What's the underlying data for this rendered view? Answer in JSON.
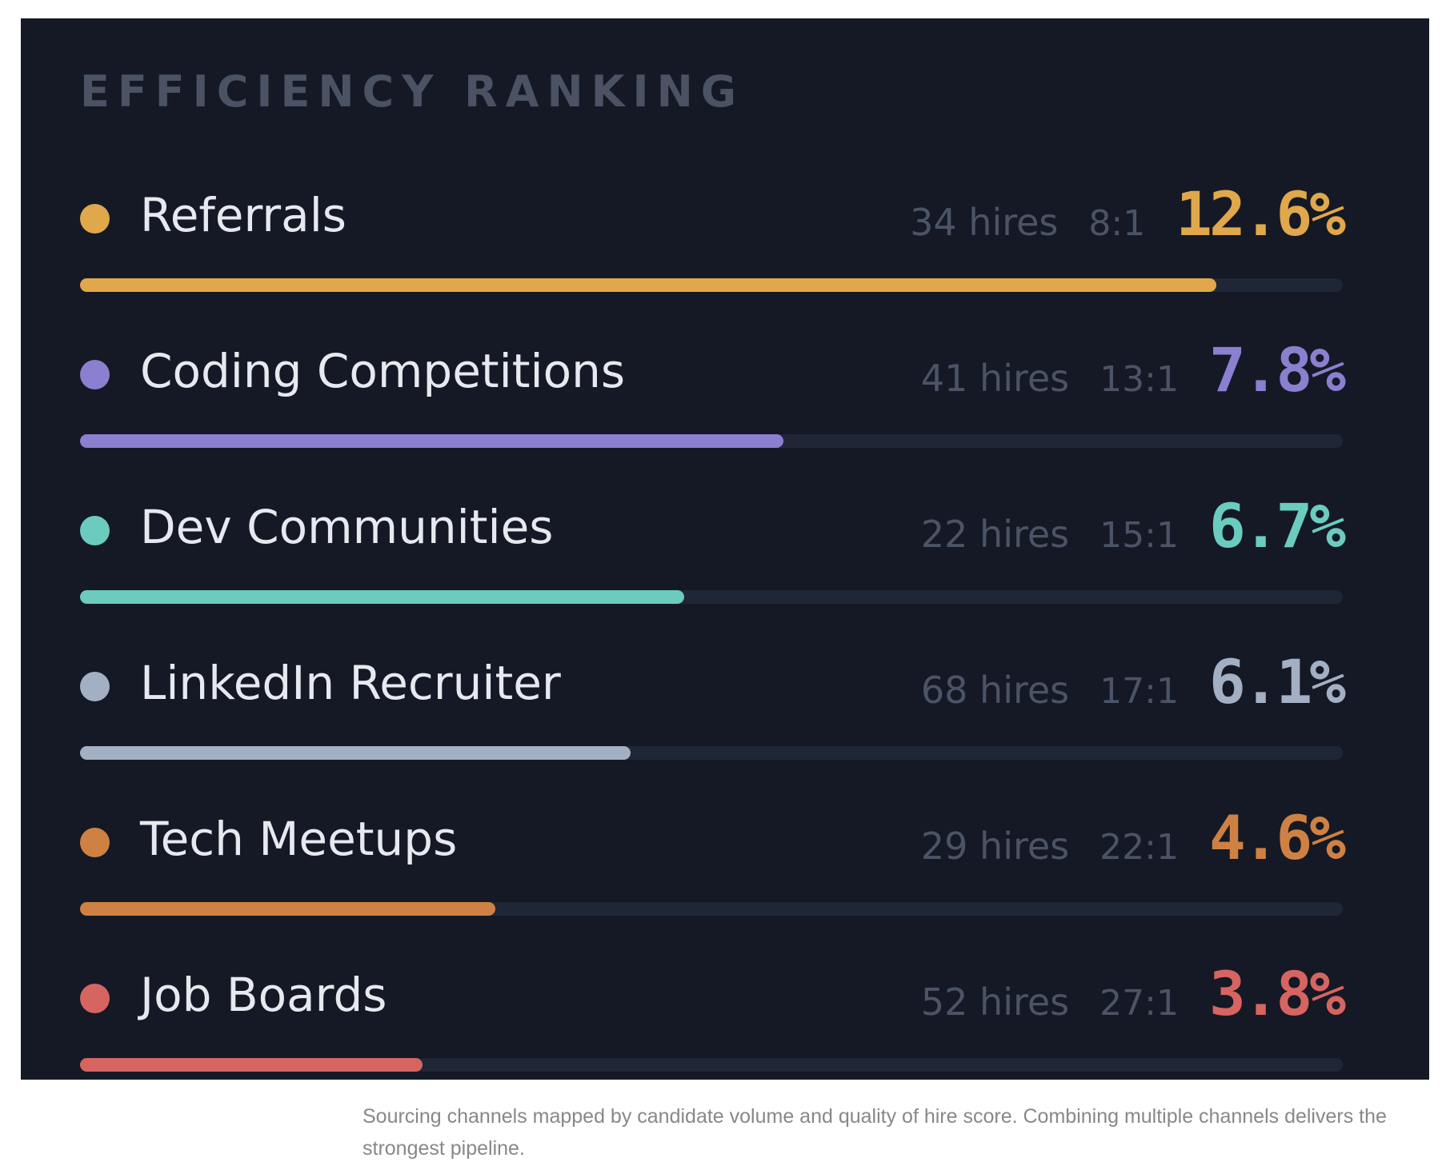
{
  "title": "EFFICIENCY RANKING",
  "caption": "Sourcing channels mapped by candidate volume and quality of hire score. Combining multiple channels delivers the strongest pipeline.",
  "chart_data": {
    "type": "bar",
    "orientation": "horizontal",
    "title": "EFFICIENCY RANKING",
    "categories": [
      "Referrals",
      "Coding Competitions",
      "Dev Communities",
      "LinkedIn Recruiter",
      "Tech Meetups",
      "Job Boards"
    ],
    "values": [
      12.6,
      7.8,
      6.7,
      6.1,
      4.6,
      3.8
    ],
    "xlim": [
      0,
      14
    ],
    "rows": [
      {
        "name": "Referrals",
        "hires": "34 hires",
        "ratio": "8:1",
        "pct": "12.6%",
        "value": 12.6,
        "color": "#e0a84a"
      },
      {
        "name": "Coding Competitions",
        "hires": "41 hires",
        "ratio": "13:1",
        "pct": "7.8%",
        "value": 7.8,
        "color": "#8b7fd0"
      },
      {
        "name": "Dev Communities",
        "hires": "22 hires",
        "ratio": "15:1",
        "pct": "6.7%",
        "value": 6.7,
        "color": "#6ccbbf"
      },
      {
        "name": "LinkedIn Recruiter",
        "hires": "68 hires",
        "ratio": "17:1",
        "pct": "6.1%",
        "value": 6.1,
        "color": "#a3afc2"
      },
      {
        "name": "Tech Meetups",
        "hires": "29 hires",
        "ratio": "22:1",
        "pct": "4.6%",
        "value": 4.6,
        "color": "#cf8143"
      },
      {
        "name": "Job Boards",
        "hires": "52 hires",
        "ratio": "27:1",
        "pct": "3.8%",
        "value": 3.8,
        "color": "#d66461"
      }
    ]
  }
}
